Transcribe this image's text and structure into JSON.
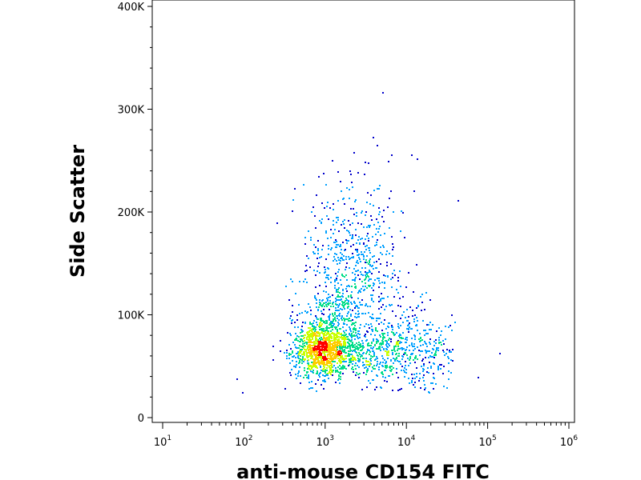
{
  "chart_data": {
    "type": "scatter",
    "title": "",
    "xlabel": "anti-mouse CD154 FITC",
    "ylabel": "Side Scatter",
    "x_scale": "log",
    "xlim": [
      10,
      1000000
    ],
    "ylim": [
      0,
      400000
    ],
    "x_ticks": [
      {
        "value": 10,
        "base": "10",
        "exp": "1"
      },
      {
        "value": 100,
        "base": "10",
        "exp": "2"
      },
      {
        "value": 1000,
        "base": "10",
        "exp": "3"
      },
      {
        "value": 10000,
        "base": "10",
        "exp": "4"
      },
      {
        "value": 100000,
        "base": "10",
        "exp": "5"
      },
      {
        "value": 1000000,
        "base": "10",
        "exp": "6"
      }
    ],
    "y_ticks": [
      {
        "value": 0,
        "label": "0"
      },
      {
        "value": 100000,
        "label": "100K"
      },
      {
        "value": 200000,
        "label": "200K"
      },
      {
        "value": 300000,
        "label": "300K"
      },
      {
        "value": 400000,
        "label": "400K"
      }
    ],
    "density_colors": [
      "#0000cc",
      "#00a0ff",
      "#00dd88",
      "#c8ff00",
      "#ffcc00",
      "#ff0000"
    ],
    "grid": false,
    "legend": "none",
    "population": {
      "peak": {
        "x": 900,
        "y": 65000
      },
      "main_axis_top": {
        "x": 2500,
        "y": 200000
      },
      "right_tail": {
        "x": 30000,
        "y": 60000
      },
      "x_extent": [
        70,
        40000
      ],
      "y_extent": [
        25000,
        260000
      ]
    },
    "outliers": [
      {
        "x": 5000,
        "y": 317000
      },
      {
        "x": 3800,
        "y": 273000
      },
      {
        "x": 4300,
        "y": 265000
      },
      {
        "x": 2200,
        "y": 258000
      },
      {
        "x": 11500,
        "y": 256000
      },
      {
        "x": 13500,
        "y": 252000
      },
      {
        "x": 43000,
        "y": 212000
      },
      {
        "x": 140000,
        "y": 63000
      },
      {
        "x": 75000,
        "y": 40000
      },
      {
        "x": 80,
        "y": 38000
      },
      {
        "x": 95,
        "y": 25000
      }
    ]
  }
}
